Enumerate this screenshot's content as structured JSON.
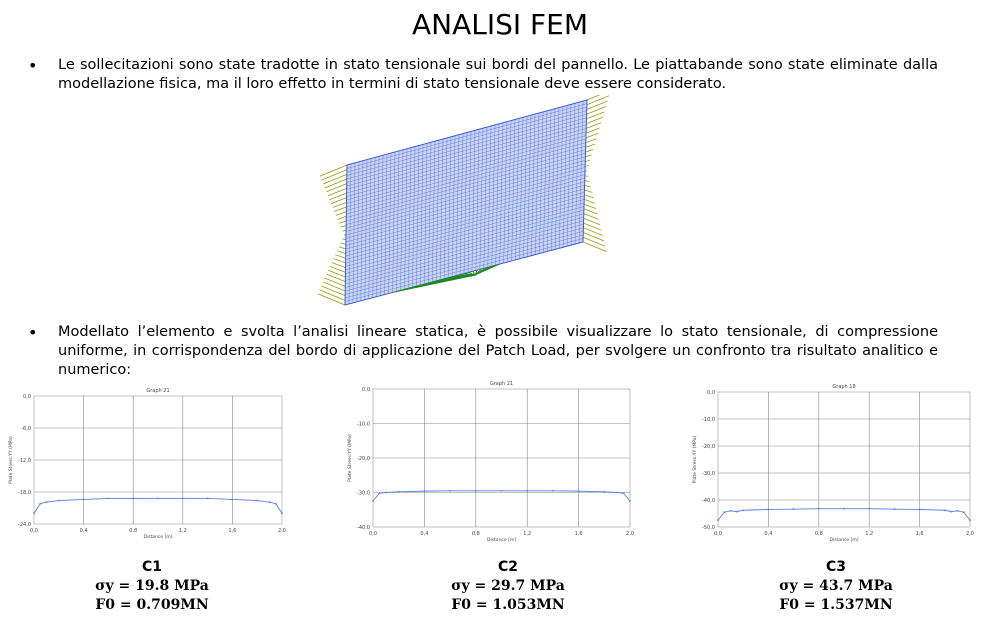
{
  "title": "ANALISI FEM",
  "bullets": [
    "Le sollecitazioni sono state tradotte in stato tensionale sui bordi del pannello. Le piattabande sono state eliminate dalla modellazione fisica, ma il loro effetto in termini di stato tensionale deve essere considerato.",
    "Modellato l’elemento e svolta l’analisi lineare statica, è possibile visualizzare lo stato tensionale, di compressione uniforme, in corrispondenza del bordo di applicazione del Patch Load, per svolgere un confronto tra risultato analitico e numerico:"
  ],
  "bullet_symbol": "•",
  "colors": {
    "mesh": "#3b5bd6",
    "mesh_fill": "#c9d4f5",
    "side_loads": "#9a9a10",
    "patch_load": "#1c8a1c",
    "series": "#5b7fe0"
  },
  "cases": [
    {
      "label": "C1",
      "sigma": "σy = 19.8 MPa",
      "force": "F0 = 0.709MN"
    },
    {
      "label": "C2",
      "sigma": "σy = 29.7 MPa",
      "force": "F0 = 1.053MN"
    },
    {
      "label": "C3",
      "sigma": "σy = 43.7 MPa",
      "force": "F0 = 1.537MN"
    }
  ],
  "chart_data": [
    {
      "type": "line",
      "title": "Graph 21",
      "xlabel": "Distance [m]",
      "ylabel": "Plate Stress:YY (MPa)",
      "xlim": [
        0,
        2
      ],
      "ylim": [
        -24,
        0
      ],
      "xticks": [
        "0,0",
        "0,4",
        "0,8",
        "1,2",
        "1,6",
        "2,0"
      ],
      "yticks": [
        "0,0",
        "-6,0",
        "-12,0",
        "-18,0",
        "-24,0"
      ],
      "grid": true,
      "x": [
        0,
        0.05,
        0.1,
        0.2,
        0.4,
        0.6,
        0.8,
        1.0,
        1.2,
        1.4,
        1.6,
        1.8,
        1.9,
        1.95,
        2.0
      ],
      "y": [
        -22,
        -20.2,
        -19.9,
        -19.6,
        -19.4,
        -19.2,
        -19.2,
        -19.2,
        -19.2,
        -19.2,
        -19.4,
        -19.6,
        -19.9,
        -20.2,
        -22
      ]
    },
    {
      "type": "line",
      "title": "Graph 21",
      "xlabel": "Distance [m]",
      "ylabel": "Plate Stress:YY (MPa)",
      "xlim": [
        0,
        2
      ],
      "ylim": [
        -40,
        0
      ],
      "xticks": [
        "0,0",
        "0,4",
        "0,8",
        "1,2",
        "1,6",
        "2,0"
      ],
      "yticks": [
        "0,0",
        "-10,0",
        "-20,0",
        "-30,0",
        "-40,0"
      ],
      "grid": true,
      "x": [
        0,
        0.05,
        0.1,
        0.2,
        0.4,
        0.6,
        0.8,
        1.0,
        1.2,
        1.4,
        1.6,
        1.8,
        1.9,
        1.95,
        2.0
      ],
      "y": [
        -32.5,
        -30.2,
        -30,
        -29.8,
        -29.6,
        -29.5,
        -29.5,
        -29.5,
        -29.5,
        -29.5,
        -29.6,
        -29.8,
        -30,
        -30.2,
        -32.5
      ]
    },
    {
      "type": "line",
      "title": "Graph 18",
      "xlabel": "Distance [m]",
      "ylabel": "Plate Stress:YY (MPa)",
      "xlim": [
        0,
        2
      ],
      "ylim": [
        -50,
        0
      ],
      "xticks": [
        "0,0",
        "0,4",
        "0,8",
        "1,2",
        "1,6",
        "2,0"
      ],
      "yticks": [
        "0,0",
        "-10,0",
        "-20,0",
        "-30,0",
        "-40,0",
        "-50,0"
      ],
      "grid": true,
      "x": [
        0,
        0.05,
        0.1,
        0.15,
        0.2,
        0.4,
        0.6,
        0.8,
        1.0,
        1.2,
        1.4,
        1.6,
        1.8,
        1.85,
        1.9,
        1.95,
        2.0
      ],
      "y": [
        -47.5,
        -44.5,
        -44,
        -44.3,
        -43.8,
        -43.5,
        -43.4,
        -43.2,
        -43.2,
        -43.2,
        -43.4,
        -43.5,
        -43.8,
        -44.3,
        -44,
        -44.5,
        -47.5
      ]
    }
  ]
}
